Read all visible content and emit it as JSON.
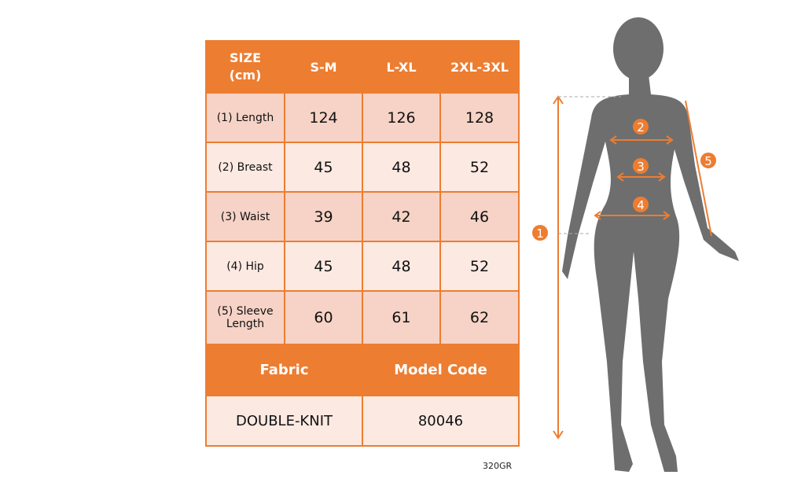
{
  "table": {
    "header": [
      "SIZE\n(cm)",
      "S-M",
      "L-XL",
      "2XL-3XL"
    ],
    "rows": [
      {
        "label": "(1) Length",
        "values": [
          "124",
          "126",
          "128"
        ]
      },
      {
        "label": "(2) Breast",
        "values": [
          "45",
          "48",
          "52"
        ]
      },
      {
        "label": "(3) Waist",
        "values": [
          "39",
          "42",
          "46"
        ]
      },
      {
        "label": "(4) Hip",
        "values": [
          "45",
          "48",
          "52"
        ]
      },
      {
        "label": "(5) Sleeve Length",
        "values": [
          "60",
          "61",
          "62"
        ]
      }
    ],
    "fabric_label": "Fabric",
    "model_code_label": "Model Code",
    "fabric_value": "DOUBLE-KNIT",
    "model_code_value": "80046"
  },
  "footer_code": "320GR",
  "figure": {
    "markers": [
      "1",
      "2",
      "3",
      "4",
      "5"
    ]
  },
  "colors": {
    "accent": "#ED7D31",
    "row_dark": "#F6D3C6",
    "row_light": "#FBE9E2",
    "silhouette": "#6E6E6E"
  }
}
